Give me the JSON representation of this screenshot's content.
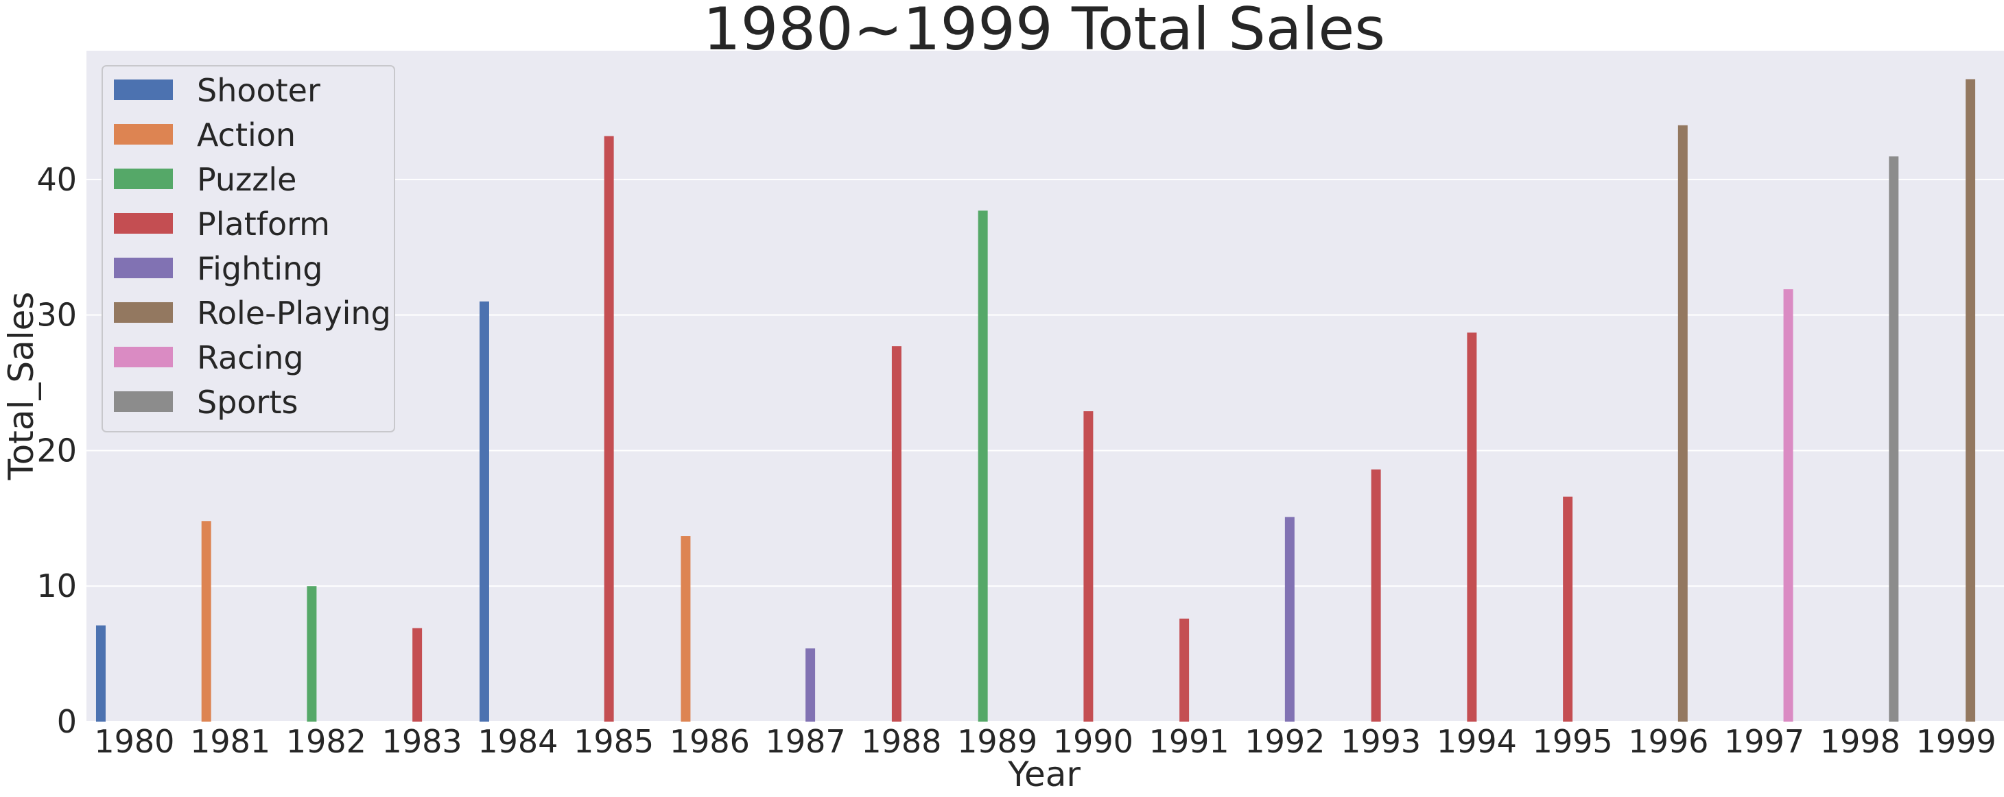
{
  "chart_data": {
    "type": "bar",
    "title": "1980~1999 Total Sales",
    "xlabel": "Year",
    "ylabel": "Total_Sales",
    "ylim": [
      0,
      49.5
    ],
    "yticks": [
      "0",
      "10",
      "20",
      "30",
      "40"
    ],
    "grid": true,
    "legend_position": "top-left",
    "categories": [
      "1980",
      "1981",
      "1982",
      "1983",
      "1984",
      "1985",
      "1986",
      "1987",
      "1988",
      "1989",
      "1990",
      "1991",
      "1992",
      "1993",
      "1994",
      "1995",
      "1996",
      "1997",
      "1998",
      "1999"
    ],
    "series": [
      {
        "name": "Shooter",
        "color": "#4c72b0",
        "values": [
          7.1,
          null,
          null,
          null,
          31.0,
          null,
          null,
          null,
          null,
          null,
          null,
          null,
          null,
          null,
          null,
          null,
          null,
          null,
          null,
          null
        ]
      },
      {
        "name": "Action",
        "color": "#dd8452",
        "values": [
          null,
          14.8,
          null,
          null,
          null,
          null,
          13.7,
          null,
          null,
          null,
          null,
          null,
          null,
          null,
          null,
          null,
          null,
          null,
          null,
          null
        ]
      },
      {
        "name": "Puzzle",
        "color": "#55a868",
        "values": [
          null,
          null,
          10.0,
          null,
          null,
          null,
          null,
          null,
          null,
          37.7,
          null,
          null,
          null,
          null,
          null,
          null,
          null,
          null,
          null,
          null
        ]
      },
      {
        "name": "Platform",
        "color": "#c44e52",
        "values": [
          null,
          null,
          null,
          6.9,
          null,
          43.2,
          null,
          null,
          27.7,
          null,
          22.9,
          7.6,
          null,
          18.6,
          28.7,
          16.6,
          null,
          null,
          null,
          null
        ]
      },
      {
        "name": "Fighting",
        "color": "#8172b3",
        "values": [
          null,
          null,
          null,
          null,
          null,
          null,
          null,
          5.4,
          null,
          null,
          null,
          null,
          15.1,
          null,
          null,
          null,
          null,
          null,
          null,
          null
        ]
      },
      {
        "name": "Role-Playing",
        "color": "#937860",
        "values": [
          null,
          null,
          null,
          null,
          null,
          null,
          null,
          null,
          null,
          null,
          null,
          null,
          null,
          null,
          null,
          null,
          44.0,
          null,
          null,
          47.4
        ]
      },
      {
        "name": "Racing",
        "color": "#da8bc3",
        "values": [
          null,
          null,
          null,
          null,
          null,
          null,
          null,
          null,
          null,
          null,
          null,
          null,
          null,
          null,
          null,
          null,
          null,
          31.9,
          null,
          null
        ]
      },
      {
        "name": "Sports",
        "color": "#8c8c8c",
        "values": [
          null,
          null,
          null,
          null,
          null,
          null,
          null,
          null,
          null,
          null,
          null,
          null,
          null,
          null,
          null,
          null,
          null,
          null,
          41.7,
          null
        ]
      }
    ]
  }
}
